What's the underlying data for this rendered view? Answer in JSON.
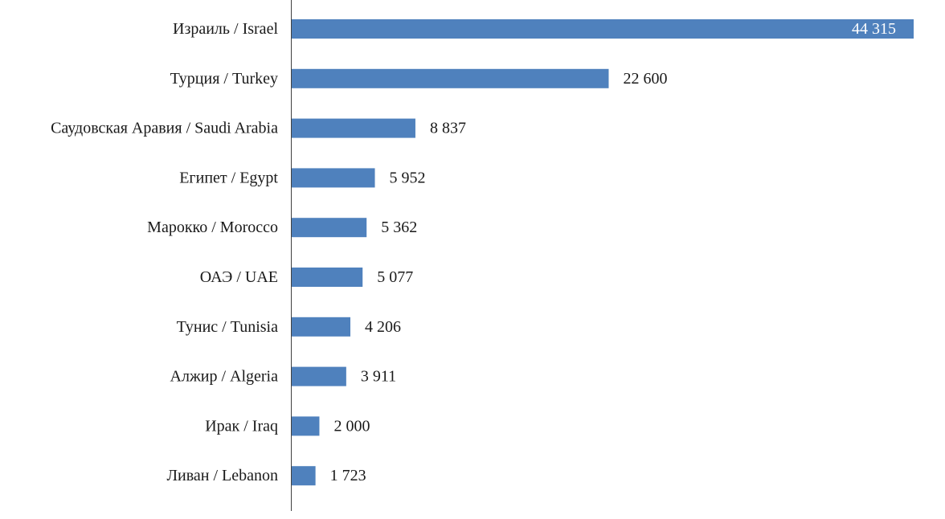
{
  "chart_data": {
    "type": "bar",
    "orientation": "horizontal",
    "categories": [
      "Израиль / Israel",
      "Турция / Turkey",
      "Саудовская Аравия / Saudi Arabia",
      "Египет / Egypt",
      "Марокко / Morocco",
      "ОАЭ / UAE",
      "Тунис / Tunisia",
      "Алжир / Algeria",
      "Ирак / Iraq",
      "Ливан / Lebanon"
    ],
    "values": [
      44315,
      22600,
      8837,
      5952,
      5362,
      5077,
      4206,
      3911,
      2000,
      1723
    ],
    "value_labels": [
      "44 315",
      "22 600",
      "8 837",
      "5 952",
      "5 362",
      "5 077",
      "4 206",
      "3 911",
      "2 000",
      "1 723"
    ],
    "title": "",
    "xlabel": "",
    "ylabel": "",
    "xlim": [
      0,
      44315
    ],
    "grid": false,
    "legend": "none",
    "bar_color": "#4F81BD",
    "axis_color": "#404040"
  }
}
